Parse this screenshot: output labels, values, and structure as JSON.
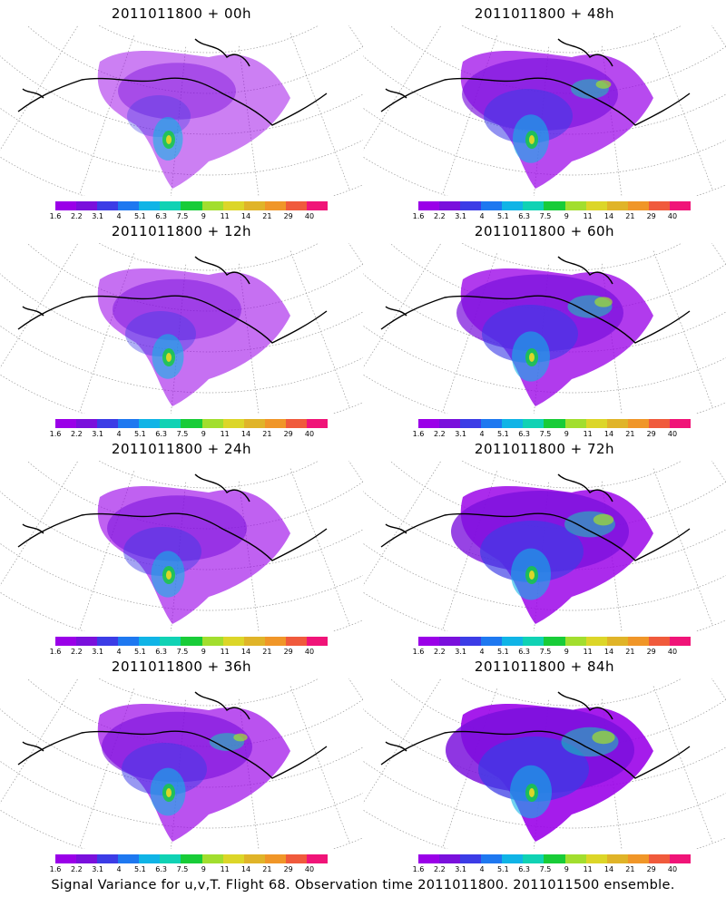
{
  "panels": [
    {
      "title": "2011011800 + 00h",
      "lead": "00h",
      "intensity": 0.25
    },
    {
      "title": "2011011800 + 12h",
      "lead": "12h",
      "intensity": 0.35
    },
    {
      "title": "2011011800 + 24h",
      "lead": "24h",
      "intensity": 0.45
    },
    {
      "title": "2011011800 + 36h",
      "lead": "36h",
      "intensity": 0.55
    },
    {
      "title": "2011011800 + 48h",
      "lead": "48h",
      "intensity": 0.6
    },
    {
      "title": "2011011800 + 60h",
      "lead": "60h",
      "intensity": 0.7
    },
    {
      "title": "2011011800 + 72h",
      "lead": "72h",
      "intensity": 0.8
    },
    {
      "title": "2011011800 + 84h",
      "lead": "84h",
      "intensity": 0.9
    }
  ],
  "colorbar": {
    "labels": [
      "1.6",
      "2.2",
      "3.1",
      "4",
      "5.1",
      "6.3",
      "7.5",
      "9",
      "11",
      "14",
      "21",
      "29",
      "40"
    ],
    "colors": [
      "#9a00e8",
      "#7a10dc",
      "#3c3ce6",
      "#1e78f0",
      "#10b4e6",
      "#10d2b4",
      "#18cc38",
      "#a2de2e",
      "#dcd628",
      "#e0b428",
      "#f09628",
      "#f05a3c",
      "#f01478"
    ]
  },
  "caption": "Signal Variance for u,v,T. Flight 68. Observation time 2011011800. 2011011500 ensemble."
}
